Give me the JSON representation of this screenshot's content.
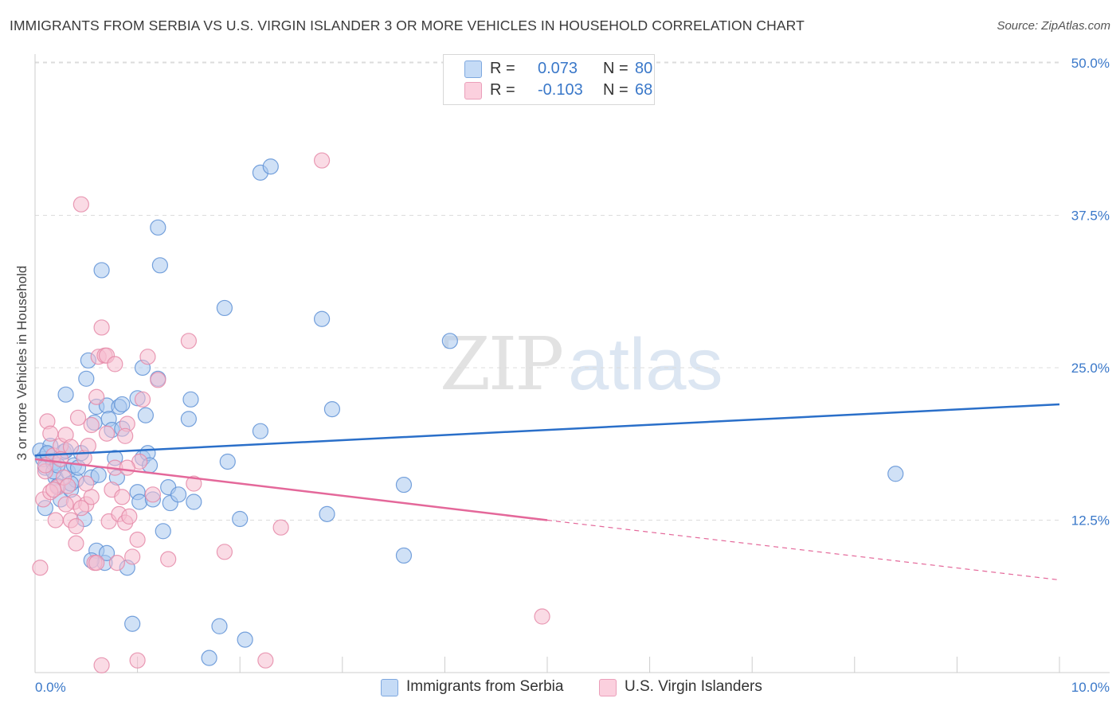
{
  "header": {
    "title": "IMMIGRANTS FROM SERBIA VS U.S. VIRGIN ISLANDER 3 OR MORE VEHICLES IN HOUSEHOLD CORRELATION CHART",
    "source": "Source: ZipAtlas.com"
  },
  "watermark": {
    "zip": "ZIP",
    "atlas": "atlas"
  },
  "legend": {
    "r_label": "R =",
    "n_label": "N =",
    "serbia": {
      "r": "0.073",
      "n": "80"
    },
    "virgin": {
      "r": "-0.103",
      "n": "68"
    }
  },
  "colors": {
    "blue_fill": "#aac8ee",
    "blue_stroke": "#5f92d6",
    "blue_line": "#2a6fc9",
    "pink_fill": "#f6bed0",
    "pink_stroke": "#e589a8",
    "pink_line": "#e4689a",
    "tick_text": "#3a78c9"
  },
  "chart_data": {
    "type": "scatter",
    "title": "IMMIGRANTS FROM SERBIA VS U.S. VIRGIN ISLANDER 3 OR MORE VEHICLES IN HOUSEHOLD CORRELATION CHART",
    "xlabel": "",
    "ylabel": "3 or more Vehicles in Household",
    "xlim": [
      0,
      10
    ],
    "ylim": [
      0,
      50
    ],
    "x_tick_labels": [
      "0.0%",
      "10.0%"
    ],
    "y_ticks": [
      12.5,
      25.0,
      37.5,
      50.0
    ],
    "y_tick_labels": [
      "12.5%",
      "25.0%",
      "37.5%",
      "50.0%"
    ],
    "grid": true,
    "series": [
      {
        "name": "Immigrants from Serbia",
        "color": "#aac8ee",
        "trend": {
          "x": [
            0,
            10
          ],
          "y": [
            17.8,
            22.0
          ],
          "style": "solid"
        },
        "points": [
          [
            0.05,
            18.2
          ],
          [
            0.08,
            17.5
          ],
          [
            0.1,
            16.8
          ],
          [
            0.12,
            17.9
          ],
          [
            0.15,
            18.6
          ],
          [
            0.18,
            17.2
          ],
          [
            0.2,
            16.0
          ],
          [
            0.22,
            15.3
          ],
          [
            0.25,
            14.2
          ],
          [
            0.28,
            18.1
          ],
          [
            0.3,
            22.8
          ],
          [
            0.32,
            16.5
          ],
          [
            0.35,
            15.0
          ],
          [
            0.38,
            17.0
          ],
          [
            0.4,
            15.8
          ],
          [
            0.45,
            18.0
          ],
          [
            0.48,
            12.6
          ],
          [
            0.5,
            24.1
          ],
          [
            0.52,
            25.6
          ],
          [
            0.55,
            16.0
          ],
          [
            0.58,
            20.5
          ],
          [
            0.6,
            21.8
          ],
          [
            0.62,
            16.2
          ],
          [
            0.65,
            33.0
          ],
          [
            0.68,
            9.0
          ],
          [
            0.7,
            21.9
          ],
          [
            0.72,
            20.8
          ],
          [
            0.75,
            19.9
          ],
          [
            0.78,
            17.6
          ],
          [
            0.8,
            16.0
          ],
          [
            0.82,
            21.8
          ],
          [
            0.85,
            20.0
          ],
          [
            0.9,
            8.6
          ],
          [
            0.95,
            4.0
          ],
          [
            1.0,
            14.8
          ],
          [
            1.02,
            14.0
          ],
          [
            1.05,
            17.6
          ],
          [
            1.08,
            21.1
          ],
          [
            1.1,
            18.0
          ],
          [
            1.12,
            17.0
          ],
          [
            1.15,
            14.2
          ],
          [
            1.2,
            24.1
          ],
          [
            1.25,
            11.6
          ],
          [
            1.2,
            36.5
          ],
          [
            1.22,
            33.4
          ],
          [
            1.3,
            15.2
          ],
          [
            1.32,
            13.9
          ],
          [
            1.4,
            14.6
          ],
          [
            1.5,
            20.8
          ],
          [
            1.52,
            22.4
          ],
          [
            1.55,
            14.0
          ],
          [
            1.8,
            3.8
          ],
          [
            1.85,
            29.9
          ],
          [
            1.88,
            17.3
          ],
          [
            2.0,
            12.6
          ],
          [
            2.05,
            2.7
          ],
          [
            2.2,
            41.0
          ],
          [
            2.3,
            41.5
          ],
          [
            2.2,
            19.8
          ],
          [
            2.8,
            29.0
          ],
          [
            2.85,
            13.0
          ],
          [
            2.9,
            21.6
          ],
          [
            3.6,
            9.6
          ],
          [
            3.6,
            15.4
          ],
          [
            4.05,
            27.2
          ],
          [
            8.4,
            16.3
          ],
          [
            0.12,
            18.0
          ],
          [
            0.18,
            16.5
          ],
          [
            0.22,
            17.0
          ],
          [
            0.3,
            18.2
          ],
          [
            0.35,
            15.5
          ],
          [
            0.42,
            16.8
          ],
          [
            0.6,
            10.0
          ],
          [
            0.7,
            9.8
          ],
          [
            0.85,
            22.0
          ],
          [
            1.0,
            22.5
          ],
          [
            1.05,
            25.0
          ],
          [
            0.55,
            9.2
          ],
          [
            1.7,
            1.2
          ],
          [
            0.1,
            13.5
          ]
        ]
      },
      {
        "name": "U.S. Virgin Islanders",
        "color": "#f6bed0",
        "trend": {
          "x": [
            0,
            5.0
          ],
          "y": [
            17.5,
            12.5
          ],
          "dashed_x": [
            5.0,
            10
          ],
          "dashed_y": [
            12.5,
            7.6
          ],
          "style": "solid+dashed"
        },
        "points": [
          [
            0.05,
            8.6
          ],
          [
            0.08,
            14.2
          ],
          [
            0.1,
            16.5
          ],
          [
            0.12,
            20.6
          ],
          [
            0.15,
            19.6
          ],
          [
            0.18,
            17.8
          ],
          [
            0.2,
            12.5
          ],
          [
            0.22,
            15.2
          ],
          [
            0.25,
            18.6
          ],
          [
            0.28,
            16.0
          ],
          [
            0.3,
            19.5
          ],
          [
            0.32,
            15.3
          ],
          [
            0.35,
            12.5
          ],
          [
            0.38,
            14.0
          ],
          [
            0.4,
            12.0
          ],
          [
            0.42,
            20.9
          ],
          [
            0.45,
            38.4
          ],
          [
            0.48,
            17.6
          ],
          [
            0.5,
            13.8
          ],
          [
            0.52,
            18.6
          ],
          [
            0.55,
            14.4
          ],
          [
            0.58,
            9.0
          ],
          [
            0.6,
            22.6
          ],
          [
            0.62,
            25.9
          ],
          [
            0.65,
            28.3
          ],
          [
            0.68,
            26.0
          ],
          [
            0.7,
            19.6
          ],
          [
            0.72,
            12.4
          ],
          [
            0.75,
            15.0
          ],
          [
            0.78,
            16.8
          ],
          [
            0.8,
            9.0
          ],
          [
            0.82,
            13.0
          ],
          [
            0.85,
            14.4
          ],
          [
            0.88,
            12.3
          ],
          [
            0.9,
            20.4
          ],
          [
            0.95,
            9.5
          ],
          [
            1.0,
            10.9
          ],
          [
            1.02,
            17.3
          ],
          [
            1.05,
            22.4
          ],
          [
            1.1,
            25.9
          ],
          [
            1.15,
            14.6
          ],
          [
            1.2,
            24.0
          ],
          [
            1.3,
            9.3
          ],
          [
            1.5,
            27.2
          ],
          [
            1.55,
            15.5
          ],
          [
            1.85,
            9.9
          ],
          [
            2.25,
            1.0
          ],
          [
            2.4,
            11.9
          ],
          [
            2.8,
            42.0
          ],
          [
            4.95,
            4.6
          ],
          [
            0.65,
            0.6
          ],
          [
            1.0,
            1.0
          ],
          [
            0.1,
            17.0
          ],
          [
            0.15,
            14.8
          ],
          [
            0.25,
            17.5
          ],
          [
            0.35,
            18.5
          ],
          [
            0.5,
            15.5
          ],
          [
            0.55,
            20.3
          ],
          [
            0.7,
            26.0
          ],
          [
            0.78,
            25.3
          ],
          [
            0.88,
            19.4
          ],
          [
            0.92,
            12.8
          ],
          [
            0.4,
            10.6
          ],
          [
            0.6,
            9.0
          ],
          [
            0.3,
            13.8
          ],
          [
            0.18,
            15.0
          ],
          [
            0.45,
            13.5
          ],
          [
            0.9,
            16.8
          ]
        ]
      }
    ]
  },
  "bottom_legend": [
    {
      "label": "Immigrants from Serbia"
    },
    {
      "label": "U.S. Virgin Islanders"
    }
  ]
}
